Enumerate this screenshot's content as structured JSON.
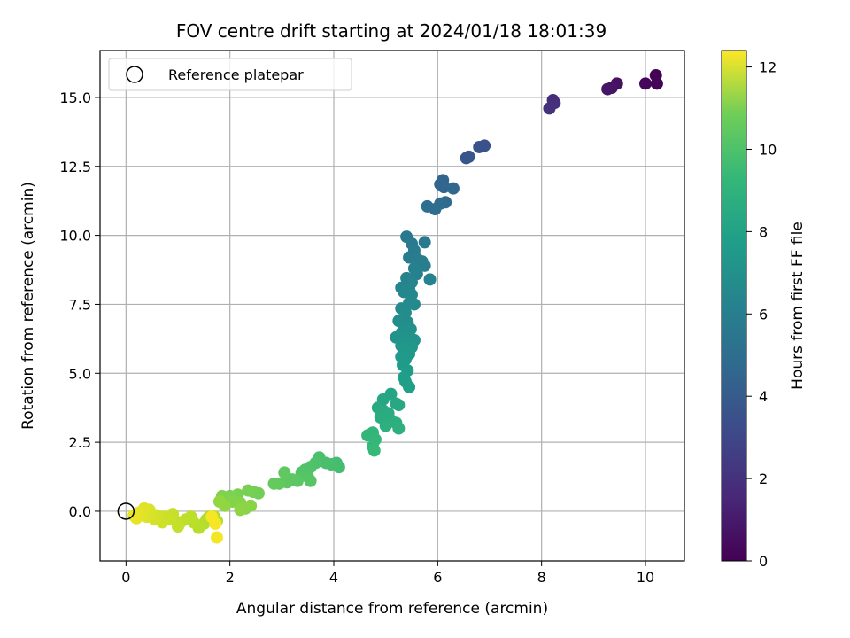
{
  "chart_data": {
    "type": "scatter",
    "title": "FOV centre drift starting at 2024/01/18 18:01:39",
    "xlabel": "Angular distance from reference (arcmin)",
    "ylabel": "Rotation from reference (arcmin)",
    "xlim": [
      -0.5,
      10.75
    ],
    "ylim": [
      -1.8,
      16.7
    ],
    "xticks": [
      0,
      2,
      4,
      6,
      8,
      10
    ],
    "yticks": [
      0.0,
      2.5,
      5.0,
      7.5,
      10.0,
      12.5,
      15.0
    ],
    "xtick_labels": [
      "0",
      "2",
      "4",
      "6",
      "8",
      "10"
    ],
    "ytick_labels": [
      "0.0",
      "2.5",
      "5.0",
      "7.5",
      "10.0",
      "12.5",
      "15.0"
    ],
    "grid": true,
    "colormap": "viridis",
    "colorbar": {
      "label": "Hours from first FF file",
      "range": [
        0,
        12.4
      ],
      "ticks": [
        0,
        2,
        4,
        6,
        8,
        10,
        12
      ],
      "tick_labels": [
        "0",
        "2",
        "4",
        "6",
        "8",
        "10",
        "12"
      ]
    },
    "legend": {
      "position": "top-left",
      "entries": [
        "Reference platepar"
      ]
    },
    "reference_point": {
      "x": 0,
      "y": 0
    },
    "points": [
      [
        10.2,
        15.8,
        0.05
      ],
      [
        10.22,
        15.5,
        0.1
      ],
      [
        10.0,
        15.5,
        0.2
      ],
      [
        9.45,
        15.5,
        0.55
      ],
      [
        9.35,
        15.35,
        0.65
      ],
      [
        9.27,
        15.3,
        0.7
      ],
      [
        8.22,
        14.9,
        1.6
      ],
      [
        8.25,
        14.8,
        1.7
      ],
      [
        8.15,
        14.6,
        1.8
      ],
      [
        6.9,
        13.25,
        3.1
      ],
      [
        6.8,
        13.2,
        3.15
      ],
      [
        6.6,
        12.85,
        3.3
      ],
      [
        6.55,
        12.8,
        3.35
      ],
      [
        6.1,
        12.0,
        4.0
      ],
      [
        6.05,
        11.85,
        4.05
      ],
      [
        6.12,
        11.75,
        4.1
      ],
      [
        6.3,
        11.7,
        4.15
      ],
      [
        6.15,
        11.2,
        4.3
      ],
      [
        6.05,
        11.15,
        4.35
      ],
      [
        5.95,
        10.95,
        4.4
      ],
      [
        5.8,
        11.05,
        4.45
      ],
      [
        5.4,
        9.95,
        5.0
      ],
      [
        5.5,
        9.7,
        5.05
      ],
      [
        5.75,
        9.75,
        5.1
      ],
      [
        5.55,
        9.45,
        5.15
      ],
      [
        5.45,
        9.2,
        5.2
      ],
      [
        5.6,
        9.15,
        5.25
      ],
      [
        5.7,
        9.05,
        5.3
      ],
      [
        5.75,
        8.9,
        5.35
      ],
      [
        5.55,
        8.8,
        5.4
      ],
      [
        5.6,
        8.6,
        5.45
      ],
      [
        5.85,
        8.4,
        5.5
      ],
      [
        5.4,
        8.45,
        5.55
      ],
      [
        5.5,
        8.3,
        5.6
      ],
      [
        5.3,
        8.1,
        5.65
      ],
      [
        5.45,
        8.05,
        5.7
      ],
      [
        5.35,
        7.95,
        5.75
      ],
      [
        5.5,
        7.85,
        5.8
      ],
      [
        5.55,
        7.5,
        5.85
      ],
      [
        5.45,
        7.55,
        5.9
      ],
      [
        5.3,
        7.35,
        5.95
      ],
      [
        5.38,
        7.2,
        6.0
      ],
      [
        5.42,
        6.85,
        6.05
      ],
      [
        5.25,
        6.9,
        6.1
      ],
      [
        5.35,
        6.7,
        6.15
      ],
      [
        5.48,
        6.6,
        6.2
      ],
      [
        5.3,
        6.45,
        6.25
      ],
      [
        5.45,
        6.35,
        6.3
      ],
      [
        5.2,
        6.3,
        6.35
      ],
      [
        5.55,
        6.2,
        6.4
      ],
      [
        5.4,
        6.1,
        6.45
      ],
      [
        5.3,
        6.0,
        6.5
      ],
      [
        5.5,
        5.95,
        6.55
      ],
      [
        5.35,
        5.85,
        6.6
      ],
      [
        5.45,
        5.7,
        6.65
      ],
      [
        5.3,
        5.6,
        6.7
      ],
      [
        5.38,
        5.5,
        6.75
      ],
      [
        5.33,
        5.3,
        6.8
      ],
      [
        5.42,
        5.1,
        6.85
      ],
      [
        5.35,
        4.85,
        6.9
      ],
      [
        5.38,
        4.7,
        6.95
      ],
      [
        5.45,
        4.5,
        7.0
      ],
      [
        5.1,
        4.25,
        7.3
      ],
      [
        4.95,
        4.05,
        7.35
      ],
      [
        5.2,
        3.9,
        7.4
      ],
      [
        5.25,
        3.85,
        7.45
      ],
      [
        4.85,
        3.75,
        7.5
      ],
      [
        4.95,
        3.65,
        7.55
      ],
      [
        5.05,
        3.55,
        7.6
      ],
      [
        4.9,
        3.4,
        7.65
      ],
      [
        5.1,
        3.3,
        7.7
      ],
      [
        5.2,
        3.2,
        7.75
      ],
      [
        5.0,
        3.1,
        7.8
      ],
      [
        5.25,
        3.0,
        7.85
      ],
      [
        4.75,
        2.85,
        8.1
      ],
      [
        4.65,
        2.75,
        8.15
      ],
      [
        4.8,
        2.6,
        8.2
      ],
      [
        4.75,
        2.35,
        8.25
      ],
      [
        4.78,
        2.2,
        8.3
      ],
      [
        4.05,
        1.75,
        8.6
      ],
      [
        4.1,
        1.6,
        8.65
      ],
      [
        3.95,
        1.7,
        8.7
      ],
      [
        3.85,
        1.75,
        8.75
      ],
      [
        3.72,
        1.95,
        8.8
      ],
      [
        3.65,
        1.75,
        8.85
      ],
      [
        3.55,
        1.6,
        8.9
      ],
      [
        3.45,
        1.5,
        8.95
      ],
      [
        3.38,
        1.4,
        9.0
      ],
      [
        3.5,
        1.25,
        9.05
      ],
      [
        3.55,
        1.1,
        9.1
      ],
      [
        3.3,
        1.1,
        9.15
      ],
      [
        3.2,
        1.15,
        9.2
      ],
      [
        3.1,
        1.05,
        9.25
      ],
      [
        3.05,
        1.4,
        9.3
      ],
      [
        2.95,
        1.0,
        9.35
      ],
      [
        2.85,
        1.0,
        9.4
      ],
      [
        2.55,
        0.65,
        9.7
      ],
      [
        2.45,
        0.7,
        9.75
      ],
      [
        2.35,
        0.75,
        9.8
      ],
      [
        2.15,
        0.6,
        9.85
      ],
      [
        2.0,
        0.55,
        9.9
      ],
      [
        1.85,
        0.55,
        9.95
      ],
      [
        1.9,
        0.45,
        10.0
      ],
      [
        2.05,
        0.35,
        10.05
      ],
      [
        2.2,
        0.3,
        10.1
      ],
      [
        2.4,
        0.2,
        10.15
      ],
      [
        2.3,
        0.1,
        10.2
      ],
      [
        2.2,
        0.05,
        10.25
      ],
      [
        1.9,
        0.2,
        10.3
      ],
      [
        1.8,
        0.35,
        10.35
      ],
      [
        1.6,
        -0.2,
        10.8
      ],
      [
        1.55,
        -0.3,
        10.85
      ],
      [
        1.7,
        -0.2,
        10.9
      ],
      [
        1.75,
        -0.35,
        10.95
      ],
      [
        1.5,
        -0.45,
        11.0
      ],
      [
        1.4,
        -0.6,
        11.05
      ],
      [
        1.3,
        -0.4,
        11.1
      ],
      [
        1.25,
        -0.2,
        11.15
      ],
      [
        1.15,
        -0.3,
        11.2
      ],
      [
        1.05,
        -0.4,
        11.25
      ],
      [
        1.0,
        -0.55,
        11.3
      ],
      [
        0.9,
        -0.1,
        11.35
      ],
      [
        0.85,
        -0.3,
        11.4
      ],
      [
        0.75,
        -0.2,
        11.45
      ],
      [
        0.7,
        -0.4,
        11.5
      ],
      [
        0.6,
        -0.15,
        11.55
      ],
      [
        0.55,
        -0.3,
        11.6
      ],
      [
        0.5,
        -0.1,
        11.65
      ],
      [
        0.45,
        0.05,
        11.7
      ],
      [
        0.4,
        -0.2,
        11.75
      ],
      [
        0.35,
        0.1,
        11.8
      ],
      [
        0.3,
        -0.15,
        11.85
      ],
      [
        0.25,
        -0.05,
        11.9
      ],
      [
        0.2,
        -0.25,
        11.95
      ],
      [
        0.15,
        -0.15,
        12.0
      ],
      [
        1.75,
        -0.95,
        12.2
      ],
      [
        1.65,
        -0.2,
        12.25
      ],
      [
        1.72,
        -0.45,
        12.3
      ]
    ]
  }
}
